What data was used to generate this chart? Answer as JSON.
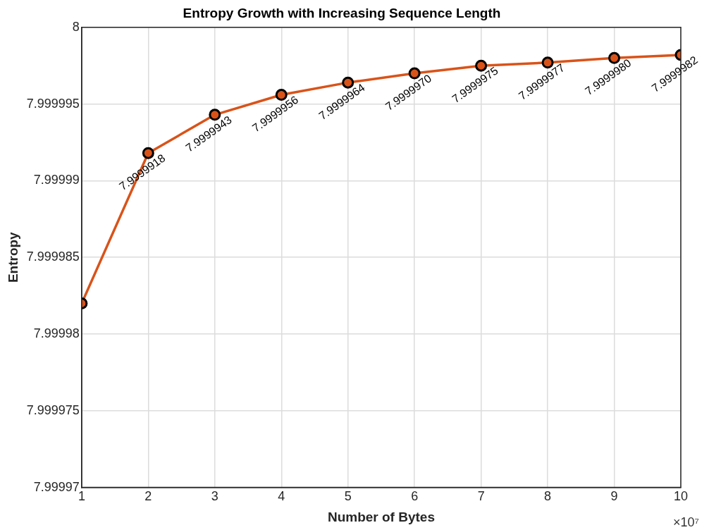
{
  "chart_data": {
    "type": "line",
    "title": "Entropy Growth with Increasing Sequence Length",
    "xlabel": "Number of Bytes",
    "ylabel": "Entropy",
    "x": [
      1,
      2,
      3,
      4,
      5,
      6,
      7,
      8,
      9,
      10
    ],
    "series": [
      {
        "color": "#d95319",
        "values": [
          7.999982,
          7.9999918,
          7.9999943,
          7.9999956,
          7.9999964,
          7.999997,
          7.9999975,
          7.9999977,
          7.999998,
          7.9999982
        ],
        "value_labels": [
          null,
          "7.9999918",
          "7.9999943",
          "7.9999956",
          "7.9999964",
          "7.9999970",
          "7.9999975",
          "7.9999977",
          "7.9999980",
          "7.9999982"
        ]
      }
    ],
    "xlim": [
      1,
      10
    ],
    "xticks": [
      1,
      2,
      3,
      4,
      5,
      6,
      7,
      8,
      9,
      10
    ],
    "ylim": [
      7.99997,
      8
    ],
    "yticks": [
      7.99997,
      7.999975,
      7.99998,
      7.999985,
      7.99999,
      7.999995,
      8
    ],
    "annotations": [
      "×10⁷"
    ],
    "grid": true,
    "legend": false,
    "marker": "circle",
    "line_style": "solid"
  }
}
